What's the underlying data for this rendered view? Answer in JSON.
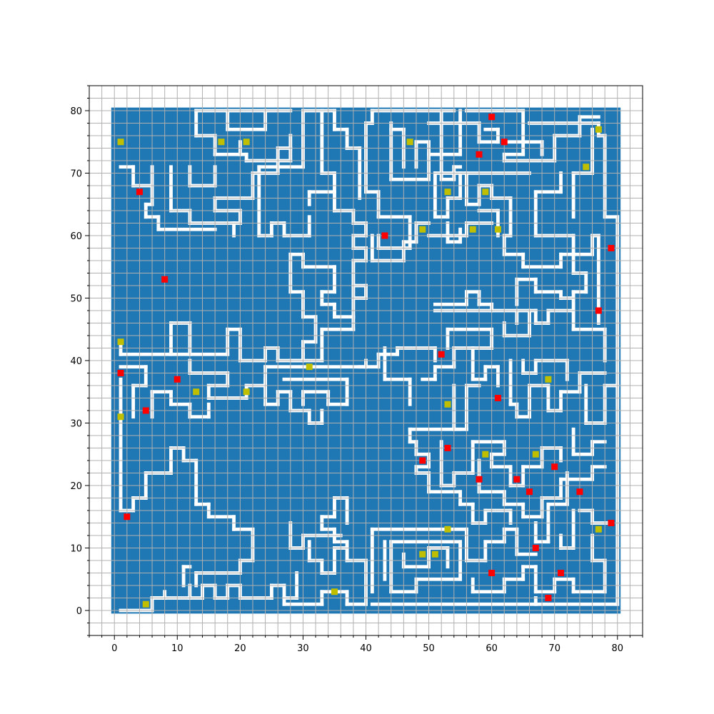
{
  "chart_data": {
    "type": "heatmap",
    "title": "",
    "xlabel": "",
    "ylabel": "",
    "xlim": [
      -4,
      84
    ],
    "ylim": [
      -4,
      84
    ],
    "grid": true,
    "x_ticks": [
      "0",
      "10",
      "20",
      "30",
      "40",
      "50",
      "60",
      "70",
      "80"
    ],
    "y_ticks": [
      "0",
      "10",
      "20",
      "30",
      "40",
      "50",
      "60",
      "70",
      "80"
    ],
    "board_range": [
      0,
      80
    ],
    "colors": {
      "wall": "#1f77b4",
      "path": "#ffffff",
      "red_marker": "#ff0000",
      "yellow_marker": "#bfbf00",
      "grid": "#b0b0b0"
    },
    "red_markers": [
      [
        60,
        79
      ],
      [
        62,
        75
      ],
      [
        58,
        73
      ],
      [
        4,
        67
      ],
      [
        43,
        60
      ],
      [
        79,
        58
      ],
      [
        8,
        53
      ],
      [
        77,
        48
      ],
      [
        52,
        41
      ],
      [
        1,
        38
      ],
      [
        10,
        37
      ],
      [
        61,
        34
      ],
      [
        5,
        32
      ],
      [
        53,
        26
      ],
      [
        49,
        24
      ],
      [
        70,
        23
      ],
      [
        58,
        21
      ],
      [
        64,
        21
      ],
      [
        66,
        19
      ],
      [
        74,
        19
      ],
      [
        2,
        15
      ],
      [
        79,
        14
      ],
      [
        67,
        10
      ],
      [
        60,
        6
      ],
      [
        71,
        6
      ],
      [
        69,
        2
      ]
    ],
    "yellow_markers": [
      [
        77,
        77
      ],
      [
        1,
        75
      ],
      [
        17,
        75
      ],
      [
        21,
        75
      ],
      [
        47,
        75
      ],
      [
        75,
        71
      ],
      [
        53,
        67
      ],
      [
        59,
        67
      ],
      [
        49,
        61
      ],
      [
        57,
        61
      ],
      [
        61,
        61
      ],
      [
        1,
        43
      ],
      [
        31,
        39
      ],
      [
        69,
        37
      ],
      [
        13,
        35
      ],
      [
        21,
        35
      ],
      [
        53,
        33
      ],
      [
        1,
        31
      ],
      [
        59,
        25
      ],
      [
        67,
        25
      ],
      [
        53,
        13
      ],
      [
        77,
        13
      ],
      [
        49,
        9
      ],
      [
        51,
        9
      ],
      [
        35,
        3
      ],
      [
        5,
        1
      ]
    ]
  }
}
